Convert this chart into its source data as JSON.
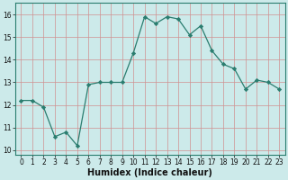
{
  "x": [
    0,
    1,
    2,
    3,
    4,
    5,
    6,
    7,
    8,
    9,
    10,
    11,
    12,
    13,
    14,
    15,
    16,
    17,
    18,
    19,
    20,
    21,
    22,
    23
  ],
  "y": [
    12.2,
    12.2,
    11.9,
    10.6,
    10.8,
    10.2,
    12.9,
    13.0,
    13.0,
    13.0,
    14.3,
    15.9,
    15.6,
    15.9,
    15.8,
    15.1,
    15.5,
    14.4,
    13.8,
    13.6,
    12.7,
    13.1,
    13.0,
    12.7
  ],
  "line_color": "#2a7d6f",
  "marker_color": "#2a7d6f",
  "bg_color": "#cceaea",
  "grid_color_h": "#d09090",
  "grid_color_v": "#d09090",
  "xlabel": "Humidex (Indice chaleur)",
  "ylim": [
    9.8,
    16.5
  ],
  "xlim": [
    -0.5,
    23.5
  ],
  "yticks": [
    10,
    11,
    12,
    13,
    14,
    15,
    16
  ],
  "xticks": [
    0,
    1,
    2,
    3,
    4,
    5,
    6,
    7,
    8,
    9,
    10,
    11,
    12,
    13,
    14,
    15,
    16,
    17,
    18,
    19,
    20,
    21,
    22,
    23
  ],
  "tick_fontsize": 5.5,
  "xlabel_fontsize": 7.0
}
